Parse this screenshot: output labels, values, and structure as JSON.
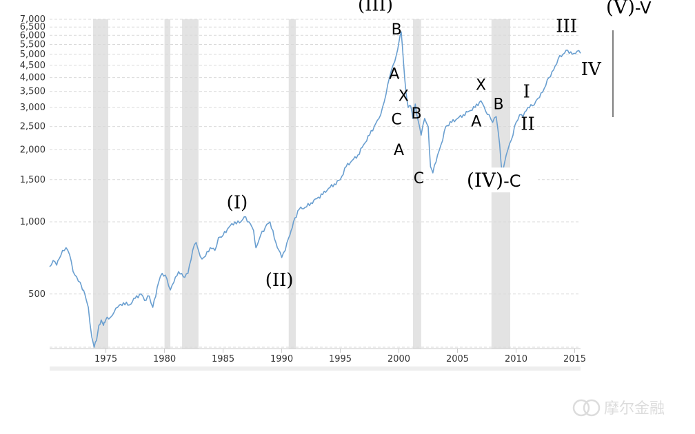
{
  "chart_data": {
    "type": "line",
    "scale": "log",
    "ylim": [
      300,
      7000
    ],
    "xlim": [
      1970.2,
      2015.5
    ],
    "y_ticks": [
      {
        "value": 500,
        "label": "500"
      },
      {
        "value": 1000,
        "label": "1,000"
      },
      {
        "value": 1500,
        "label": "1,500"
      },
      {
        "value": 2000,
        "label": "2,000"
      },
      {
        "value": 2500,
        "label": "2,500"
      },
      {
        "value": 3000,
        "label": "3,000"
      },
      {
        "value": 3500,
        "label": "3,500"
      },
      {
        "value": 4000,
        "label": "4,000"
      },
      {
        "value": 4500,
        "label": "4,500"
      },
      {
        "value": 5000,
        "label": "5,000"
      },
      {
        "value": 5500,
        "label": "5,500"
      },
      {
        "value": 6000,
        "label": "6,000"
      },
      {
        "value": 6500,
        "label": "6,500"
      },
      {
        "value": 7000,
        "label": "7,000"
      }
    ],
    "x_ticks": [
      {
        "value": 1975,
        "label": "1975"
      },
      {
        "value": 1980,
        "label": "1980"
      },
      {
        "value": 1985,
        "label": "1985"
      },
      {
        "value": 1990,
        "label": "1990"
      },
      {
        "value": 1995,
        "label": "1995"
      },
      {
        "value": 2000,
        "label": "2000"
      },
      {
        "value": 2005,
        "label": "2005"
      },
      {
        "value": 2010,
        "label": "2010"
      },
      {
        "value": 2015,
        "label": "2015"
      }
    ],
    "grid": true,
    "line_color": "#6a9fd0",
    "recession_color": "#e3e3e3",
    "recessions": [
      [
        1973.9,
        1975.2
      ],
      [
        1980.0,
        1980.5
      ],
      [
        1981.5,
        1982.9
      ],
      [
        1990.6,
        1991.2
      ],
      [
        2001.2,
        2001.9
      ],
      [
        2007.9,
        2009.5
      ]
    ],
    "series": [
      {
        "x": [
          1970.2,
          1970.5,
          1970.8,
          1971.0,
          1971.3,
          1971.6,
          1971.9,
          1972.2,
          1972.5,
          1972.8,
          1973.0,
          1973.2,
          1973.5,
          1973.8,
          1974.0,
          1974.2,
          1974.4,
          1974.6,
          1974.8,
          1974.9,
          1975.1,
          1975.4,
          1975.7,
          1976.0,
          1976.5,
          1977.0,
          1977.5,
          1978.0,
          1978.3,
          1978.7,
          1979.0,
          1979.5,
          1979.8,
          1980.2,
          1980.5,
          1980.8,
          1981.2,
          1981.6,
          1982.0,
          1982.4,
          1982.7,
          1982.9,
          1983.2,
          1983.5,
          1983.9,
          1984.3,
          1984.6,
          1985.0,
          1985.5,
          1986.0,
          1986.4,
          1986.8,
          1987.2,
          1987.6,
          1987.8,
          1988.2,
          1988.6,
          1989.0,
          1989.5,
          1990.0,
          1990.3,
          1990.6,
          1990.8,
          1991.0,
          1991.5,
          1992.0,
          1992.5,
          1993.0,
          1993.5,
          1994.0,
          1994.5,
          1995.0,
          1995.5,
          1996.0,
          1996.5,
          1997.0,
          1997.5,
          1997.9,
          1998.3,
          1998.6,
          1998.9,
          1999.2,
          1999.5,
          1999.8,
          2000.0,
          2000.2,
          2000.4,
          2000.6,
          2000.8,
          2001.0,
          2001.2,
          2001.4,
          2001.6,
          2001.9,
          2002.2,
          2002.5,
          2002.7,
          2002.9,
          2003.3,
          2003.6,
          2004.0,
          2004.5,
          2005.0,
          2005.5,
          2006.0,
          2006.5,
          2007.0,
          2007.4,
          2007.7,
          2008.0,
          2008.3,
          2008.6,
          2008.8,
          2009.0,
          2009.3,
          2009.6,
          2010.0,
          2010.3,
          2010.6,
          2011.0,
          2011.4,
          2011.7,
          2012.0,
          2012.4,
          2012.8,
          2013.2,
          2013.6,
          2014.0,
          2014.4,
          2014.8,
          2015.2,
          2015.5
        ],
        "values": [
          650,
          690,
          660,
          700,
          760,
          780,
          730,
          620,
          590,
          560,
          520,
          500,
          440,
          330,
          300,
          320,
          370,
          390,
          370,
          380,
          400,
          400,
          420,
          440,
          460,
          450,
          480,
          500,
          470,
          490,
          440,
          560,
          610,
          580,
          520,
          560,
          620,
          590,
          610,
          760,
          820,
          760,
          700,
          720,
          780,
          760,
          860,
          880,
          950,
          1000,
          990,
          1050,
          1000,
          920,
          780,
          880,
          950,
          1000,
          820,
          710,
          760,
          860,
          920,
          1000,
          1130,
          1150,
          1200,
          1250,
          1300,
          1380,
          1440,
          1500,
          1700,
          1800,
          1900,
          2100,
          2300,
          2500,
          2700,
          3000,
          3400,
          4000,
          4500,
          5000,
          5600,
          6200,
          4600,
          3500,
          3000,
          3050,
          2700,
          3100,
          2700,
          2300,
          2700,
          2500,
          1700,
          1600,
          1900,
          2100,
          2500,
          2600,
          2700,
          2800,
          2900,
          3000,
          3200,
          2900,
          2800,
          2600,
          2750,
          2100,
          1600,
          1750,
          2000,
          2200,
          2600,
          2800,
          2750,
          3000,
          3050,
          3200,
          3300,
          3600,
          4000,
          4300,
          4800,
          5000,
          5200,
          5000,
          5150,
          5050
        ]
      }
    ]
  },
  "annotations": [
    {
      "text": "(I)",
      "x": 1986.2,
      "y": 1140,
      "style": "serif"
    },
    {
      "text": "(II)",
      "x": 1989.8,
      "y": 540,
      "style": "serif"
    },
    {
      "text": "(III)",
      "x": 1998.0,
      "y": 7600,
      "style": "serif"
    },
    {
      "text": "B",
      "x": 1999.8,
      "y": 6050,
      "style": "sans"
    },
    {
      "text": "A",
      "x": 1999.6,
      "y": 3950,
      "style": "sans"
    },
    {
      "text": "X",
      "x": 2000.4,
      "y": 3200,
      "style": "sans"
    },
    {
      "text": "C",
      "x": 1999.8,
      "y": 2550,
      "style": "sans"
    },
    {
      "text": "B",
      "x": 2001.5,
      "y": 2700,
      "style": "sans"
    },
    {
      "text": "A",
      "x": 2000.0,
      "y": 1900,
      "style": "sans"
    },
    {
      "text": "C",
      "x": 2001.7,
      "y": 1450,
      "style": "sans"
    },
    {
      "text": "X",
      "x": 2007.0,
      "y": 3550,
      "style": "sans"
    },
    {
      "text": "B",
      "x": 2008.5,
      "y": 2950,
      "style": "sans"
    },
    {
      "text": "A",
      "x": 2006.6,
      "y": 2500,
      "style": "sans"
    },
    {
      "text": "(IV)-C",
      "x": 2008.1,
      "y": 1400,
      "style": "mixed"
    },
    {
      "text": "I",
      "x": 2010.9,
      "y": 3300,
      "style": "serif"
    },
    {
      "text": "II",
      "x": 2011.0,
      "y": 2420,
      "style": "serif"
    },
    {
      "text": "III",
      "x": 2014.3,
      "y": 6200,
      "style": "serif"
    },
    {
      "text": "IV",
      "x": 2016.4,
      "y": 4100,
      "style": "serif"
    },
    {
      "text": "(V)-V",
      "x": 2019.6,
      "y": 7400,
      "style": "mixed"
    }
  ],
  "watermark": "摩尔金融"
}
